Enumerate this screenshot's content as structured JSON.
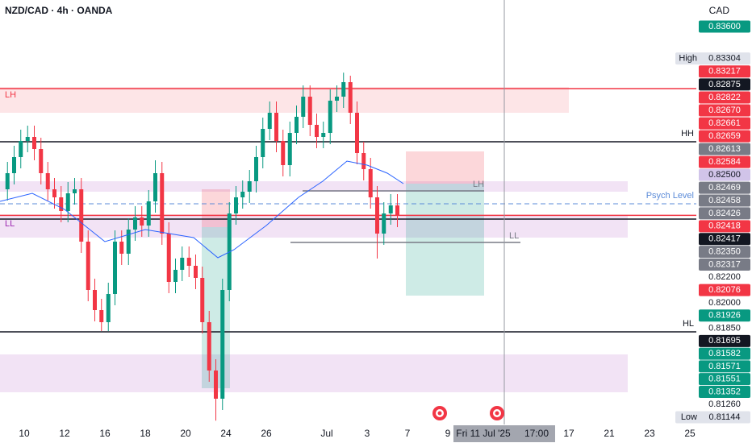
{
  "chart_data": {
    "type": "candlestick",
    "title": "NZD/CAD · 4h · OANDA",
    "currency": "CAD",
    "colors": {
      "up": "#089981",
      "down": "#f23645"
    },
    "xlim": [
      -0.2,
      34.32
    ],
    "ylim": [
      0.8112,
      0.83755
    ],
    "xticks": [
      {
        "value": 1,
        "label": "10"
      },
      {
        "value": 3,
        "label": "12"
      },
      {
        "value": 5,
        "label": "16"
      },
      {
        "value": 7,
        "label": "18"
      },
      {
        "value": 9,
        "label": "20"
      },
      {
        "value": 11,
        "label": "24"
      },
      {
        "value": 13,
        "label": "26"
      },
      {
        "value": 16,
        "label": "Jul"
      },
      {
        "value": 18,
        "label": "3"
      },
      {
        "value": 20,
        "label": "7"
      },
      {
        "value": 22,
        "label": "9"
      },
      {
        "value": 28,
        "label": "17"
      },
      {
        "value": 30,
        "label": "21"
      },
      {
        "value": 32,
        "label": "23"
      },
      {
        "value": 34,
        "label": "25"
      }
    ],
    "x": [
      0.17,
      0.5,
      0.83,
      1.17,
      1.5,
      1.83,
      2.17,
      2.5,
      2.83,
      3.17,
      3.5,
      3.83,
      4.17,
      4.5,
      4.83,
      5.17,
      5.5,
      5.83,
      6.17,
      6.5,
      6.83,
      7.17,
      7.5,
      7.83,
      8.17,
      8.5,
      8.83,
      9.17,
      9.5,
      9.83,
      10.17,
      10.5,
      10.83,
      11.17,
      11.5,
      11.83,
      12.17,
      12.5,
      12.83,
      13.17,
      13.5,
      13.83,
      14.17,
      14.5,
      14.83,
      15.17,
      15.5,
      15.83,
      16.17,
      16.5,
      16.83,
      17.17,
      17.5,
      17.83,
      18.17,
      18.5,
      18.83,
      19.17,
      19.5
    ],
    "open": [
      0.8258,
      0.8268,
      0.8278,
      0.8288,
      0.82905,
      0.8283,
      0.8268,
      0.8258,
      0.8253,
      0.82445,
      0.82555,
      0.8258,
      0.82255,
      0.81955,
      0.8183,
      0.81755,
      0.8193,
      0.82255,
      0.8218,
      0.8233,
      0.82405,
      0.82355,
      0.82505,
      0.8268,
      0.82305,
      0.82005,
      0.8208,
      0.82155,
      0.82105,
      0.8203,
      0.81755,
      0.81455,
      0.8128,
      0.81955,
      0.8243,
      0.8253,
      0.82565,
      0.8263,
      0.8278,
      0.82955,
      0.83055,
      0.8288,
      0.8273,
      0.8293,
      0.8303,
      0.83155,
      0.8298,
      0.82905,
      0.8293,
      0.8313,
      0.83155,
      0.83245,
      0.83055,
      0.82805,
      0.82705,
      0.8253,
      0.82305,
      0.8243,
      0.8248
    ],
    "high": [
      0.8275,
      0.8285,
      0.8295,
      0.82975,
      0.82975,
      0.829,
      0.8275,
      0.8265,
      0.826,
      0.82625,
      0.8265,
      0.8265,
      0.82325,
      0.82025,
      0.819,
      0.82,
      0.82325,
      0.82325,
      0.824,
      0.82475,
      0.82475,
      0.82575,
      0.8276,
      0.8275,
      0.82375,
      0.8215,
      0.82225,
      0.82225,
      0.82175,
      0.821,
      0.81825,
      0.81525,
      0.82025,
      0.825,
      0.826,
      0.82635,
      0.827,
      0.8285,
      0.83025,
      0.83125,
      0.83125,
      0.8295,
      0.83,
      0.831,
      0.83225,
      0.83225,
      0.8305,
      0.83,
      0.832,
      0.83225,
      0.83304,
      0.83285,
      0.83125,
      0.82875,
      0.82775,
      0.826,
      0.825,
      0.8255,
      0.8255
    ],
    "low": [
      0.8251,
      0.8261,
      0.8271,
      0.8281,
      0.8276,
      0.8261,
      0.8251,
      0.8246,
      0.82375,
      0.82375,
      0.82485,
      0.82185,
      0.81885,
      0.8176,
      0.817,
      0.817,
      0.8186,
      0.8211,
      0.8211,
      0.8226,
      0.82285,
      0.82285,
      0.82435,
      0.82235,
      0.81935,
      0.81935,
      0.8201,
      0.82035,
      0.8196,
      0.81685,
      0.81385,
      0.81144,
      0.8121,
      0.81885,
      0.8236,
      0.8246,
      0.82495,
      0.8256,
      0.8271,
      0.82885,
      0.8281,
      0.8266,
      0.8266,
      0.8286,
      0.8296,
      0.8291,
      0.82835,
      0.82835,
      0.8286,
      0.8306,
      0.83085,
      0.82985,
      0.82735,
      0.82635,
      0.8246,
      0.8215,
      0.82235,
      0.8236,
      0.82345
    ],
    "close": [
      0.8268,
      0.8278,
      0.8288,
      0.82905,
      0.8283,
      0.8268,
      0.8258,
      0.8253,
      0.82445,
      0.82555,
      0.8258,
      0.82255,
      0.81955,
      0.8183,
      0.81755,
      0.8193,
      0.82255,
      0.8218,
      0.8233,
      0.82405,
      0.82355,
      0.82505,
      0.8268,
      0.82305,
      0.82005,
      0.8208,
      0.82155,
      0.82105,
      0.8203,
      0.81755,
      0.81455,
      0.8128,
      0.81955,
      0.8243,
      0.8253,
      0.82565,
      0.8263,
      0.8278,
      0.82955,
      0.83055,
      0.8288,
      0.8273,
      0.8293,
      0.8303,
      0.83155,
      0.8298,
      0.82905,
      0.8293,
      0.8313,
      0.83155,
      0.83245,
      0.83055,
      0.82805,
      0.82705,
      0.8253,
      0.82305,
      0.8243,
      0.8248,
      0.82415
    ],
    "ma": {
      "color": "#2962ff",
      "x": [
        -0.2,
        1.4,
        3,
        5,
        7,
        8.2,
        9.4,
        10.6,
        11.4,
        13,
        14.6,
        15.8,
        17,
        18,
        19,
        19.8
      ],
      "values": [
        0.82505,
        0.82555,
        0.82455,
        0.82255,
        0.8233,
        0.82305,
        0.8228,
        0.82155,
        0.82205,
        0.82355,
        0.8253,
        0.8263,
        0.82755,
        0.8273,
        0.8268,
        0.82615
      ]
    },
    "zones": [
      {
        "from": 0.83215,
        "to": 0.83055,
        "x_to": 28,
        "color": "#f23645",
        "label": "LH"
      },
      {
        "from": 0.8263,
        "to": 0.82565,
        "x_to": 30.92,
        "color": "#9c27b0"
      },
      {
        "from": 0.82415,
        "to": 0.8228,
        "x_to": 30.92,
        "color": "#9c27b0",
        "label": "LL"
      },
      {
        "from": 0.81555,
        "to": 0.8132,
        "x_to": 30.92,
        "color": "#9c27b0"
      }
    ],
    "positions": [
      {
        "x_from": 19.92,
        "x_to": 23.8,
        "entry": 0.82615,
        "stop": 0.82815,
        "target": 0.8192
      },
      {
        "x_from": 9.8,
        "x_to": 11.2,
        "entry": 0.82345,
        "stop": 0.8258,
        "target": 0.81345
      }
    ],
    "lines": [
      {
        "value": 0.83205,
        "color": "#f23645"
      },
      {
        "value": 0.82875,
        "color": "#131722",
        "label": "HH"
      },
      {
        "value": 0.8249,
        "color": "#5b8bd8",
        "label": "Psych Level",
        "dashed": true
      },
      {
        "value": 0.82418,
        "color": "#f23645"
      },
      {
        "value": 0.82395,
        "color": "#131722"
      },
      {
        "value": 0.81695,
        "color": "#131722",
        "label": "HL"
      }
    ],
    "segments": [
      {
        "value": 0.8257,
        "x_from": 14.8,
        "x_to": 23.8,
        "label": "LH"
      },
      {
        "value": 0.8225,
        "x_from": 14.2,
        "x_to": 25.6,
        "label": "LL"
      }
    ],
    "crosshair": {
      "x": 24.8,
      "date": "Fri 11 Jul '25",
      "time": "17:00"
    },
    "price_tags": [
      {
        "value": 0.836,
        "label": "0.83600",
        "color": "#089981"
      },
      {
        "name": "High",
        "value": 0.83304,
        "label": "0.83304",
        "color": "#e0e3eb"
      },
      {
        "value": 0.83217,
        "label": "0.83217",
        "color": "#f23645"
      },
      {
        "value": 0.82875,
        "label": "0.82875",
        "color": "#131722"
      },
      {
        "value": 0.82822,
        "label": "0.82822",
        "color": "#f23645"
      },
      {
        "value": 0.8267,
        "label": "0.82670",
        "color": "#f23645"
      },
      {
        "value": 0.82661,
        "label": "0.82661",
        "color": "#f23645"
      },
      {
        "value": 0.82659,
        "label": "0.82659",
        "color": "#f23645"
      },
      {
        "value": 0.82613,
        "label": "0.82613",
        "color": "#787b86"
      },
      {
        "value": 0.82584,
        "label": "0.82584",
        "color": "#f23645"
      },
      {
        "value": 0.825,
        "label": "0.82500",
        "color": "#d1c4e9"
      },
      {
        "value": 0.82469,
        "label": "0.82469",
        "color": "#787b86"
      },
      {
        "value": 0.82458,
        "label": "0.82458",
        "color": "#787b86"
      },
      {
        "value": 0.82426,
        "label": "0.82426",
        "color": "#787b86"
      },
      {
        "value": 0.82418,
        "label": "0.82418",
        "color": "#f23645"
      },
      {
        "value": 0.82417,
        "label": "0.82417",
        "color": "#131722"
      },
      {
        "value": 0.8235,
        "label": "0.82350",
        "color": "#787b86"
      },
      {
        "value": 0.82317,
        "label": "0.82317",
        "color": "#787b86"
      },
      {
        "value": 0.822,
        "label": "0.82200"
      },
      {
        "value": 0.82076,
        "label": "0.82076",
        "color": "#f23645"
      },
      {
        "value": 0.82,
        "label": "0.82000"
      },
      {
        "value": 0.81926,
        "label": "0.81926",
        "color": "#089981"
      },
      {
        "value": 0.8185,
        "label": "0.81850"
      },
      {
        "value": 0.81695,
        "label": "0.81695",
        "color": "#131722"
      },
      {
        "value": 0.81582,
        "label": "0.81582",
        "color": "#089981"
      },
      {
        "value": 0.81571,
        "label": "0.81571",
        "color": "#089981"
      },
      {
        "value": 0.81551,
        "label": "0.81551",
        "color": "#089981"
      },
      {
        "value": 0.81352,
        "label": "0.81352",
        "color": "#089981"
      },
      {
        "value": 0.8126,
        "label": "0.81260"
      },
      {
        "name": "Low",
        "value": 0.81144,
        "label": "0.81144",
        "color": "#e0e3eb"
      }
    ]
  }
}
